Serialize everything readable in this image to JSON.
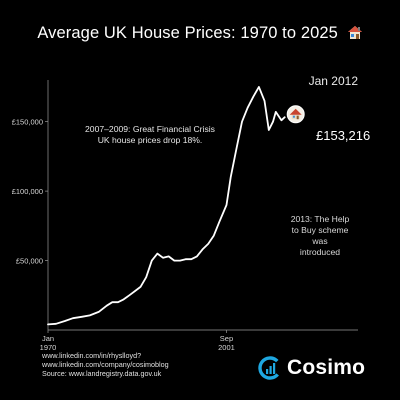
{
  "title": "Average UK House Prices: 1970 to 2025",
  "current_date_label": "Jan 2012",
  "current_value_label": "£153,216",
  "annotations": {
    "crisis": [
      "2007–2009: Great Financial Crisis",
      "UK house prices drop 18%."
    ],
    "help_to_buy": [
      "2013: The Help",
      "to Buy scheme",
      "was",
      "introduced"
    ]
  },
  "credits": [
    "www.linkedin.com/in/rhyslloyd?",
    "www.linkedin.com/company/cosimoblog",
    "Source: www.landregistry.data.gov.uk"
  ],
  "brand": {
    "name": "Cosimo",
    "logo_icon": "cosimo-logo-icon"
  },
  "icons": {
    "title_icon": "house-icon",
    "marker_icon": "house-marker-icon"
  },
  "colors": {
    "background": "#000000",
    "line": "#ffffff",
    "brand_blue": "#1ea7e0"
  },
  "chart_data": {
    "type": "line",
    "title": "Average UK House Prices: 1970 to 2025",
    "xlabel": "",
    "ylabel": "",
    "x_ticks": [
      {
        "lines": [
          "Jan",
          "1970"
        ],
        "date": "1970-01"
      },
      {
        "lines": [
          "Sep",
          "2001"
        ],
        "date": "2001-09"
      }
    ],
    "y_ticks": [
      {
        "label": "£50,000",
        "value": 50000
      },
      {
        "label": "£100,000",
        "value": 100000
      },
      {
        "label": "£150,000",
        "value": 150000
      }
    ],
    "ylim": [
      0,
      180000
    ],
    "xlim": [
      "1970-01",
      "2025-01"
    ],
    "grid": false,
    "series": [
      {
        "points": [
          [
            "1970-01",
            4000
          ],
          [
            "1971-06",
            4500
          ],
          [
            "1973-01",
            6500
          ],
          [
            "1974-06",
            8500
          ],
          [
            "1976-01",
            9500
          ],
          [
            "1977-06",
            10500
          ],
          [
            "1979-01",
            13000
          ],
          [
            "1980-06",
            17500
          ],
          [
            "1981-06",
            20000
          ],
          [
            "1982-06",
            20000
          ],
          [
            "1983-06",
            22000
          ],
          [
            "1984-06",
            25000
          ],
          [
            "1985-06",
            28000
          ],
          [
            "1986-06",
            31000
          ],
          [
            "1987-06",
            38000
          ],
          [
            "1988-06",
            50000
          ],
          [
            "1989-06",
            55000
          ],
          [
            "1990-06",
            52000
          ],
          [
            "1991-06",
            53000
          ],
          [
            "1992-06",
            50000
          ],
          [
            "1993-06",
            50000
          ],
          [
            "1994-06",
            51000
          ],
          [
            "1995-06",
            51000
          ],
          [
            "1996-06",
            53000
          ],
          [
            "1997-06",
            58000
          ],
          [
            "1998-06",
            62000
          ],
          [
            "1999-06",
            68000
          ],
          [
            "2000-06",
            78000
          ],
          [
            "2001-09",
            90000
          ],
          [
            "2002-06",
            110000
          ],
          [
            "2003-06",
            130000
          ],
          [
            "2004-06",
            150000
          ],
          [
            "2005-06",
            160000
          ],
          [
            "2006-06",
            168000
          ],
          [
            "2007-06",
            175000
          ],
          [
            "2008-06",
            165000
          ],
          [
            "2009-03",
            144000
          ],
          [
            "2009-12",
            150000
          ],
          [
            "2010-06",
            157000
          ],
          [
            "2011-06",
            151000
          ],
          [
            "2012-01",
            153216
          ]
        ]
      }
    ]
  }
}
